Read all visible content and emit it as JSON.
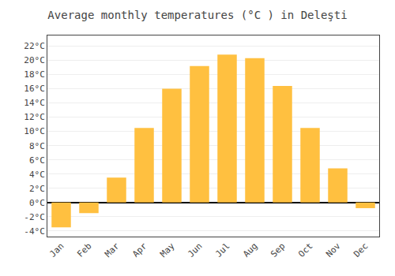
{
  "chart_data": {
    "type": "bar",
    "title": "Average monthly temperatures (°C ) in Deleşti",
    "categories": [
      "Jan",
      "Feb",
      "Mar",
      "Apr",
      "May",
      "Jun",
      "Jul",
      "Aug",
      "Sep",
      "Oct",
      "Nov",
      "Dec"
    ],
    "values": [
      -3.5,
      -1.5,
      3.5,
      10.5,
      16.0,
      19.2,
      20.8,
      20.3,
      16.4,
      10.5,
      4.8,
      -0.8
    ],
    "color": "#FFC040",
    "ylim": [
      -4.8,
      23.5
    ],
    "yticks": [
      {
        "value": -4,
        "label": "-4°C"
      },
      {
        "value": -2,
        "label": "-2°C"
      },
      {
        "value": 0,
        "label": "0°C"
      },
      {
        "value": 2,
        "label": "2°C"
      },
      {
        "value": 4,
        "label": "4°C"
      },
      {
        "value": 6,
        "label": "6°C"
      },
      {
        "value": 8,
        "label": "8°C"
      },
      {
        "value": 10,
        "label": "10°C"
      },
      {
        "value": 12,
        "label": "12°C"
      },
      {
        "value": 14,
        "label": "14°C"
      },
      {
        "value": 16,
        "label": "16°C"
      },
      {
        "value": 18,
        "label": "18°C"
      },
      {
        "value": 20,
        "label": "20°C"
      },
      {
        "value": 22,
        "label": "22°C"
      }
    ],
    "grid": true
  }
}
